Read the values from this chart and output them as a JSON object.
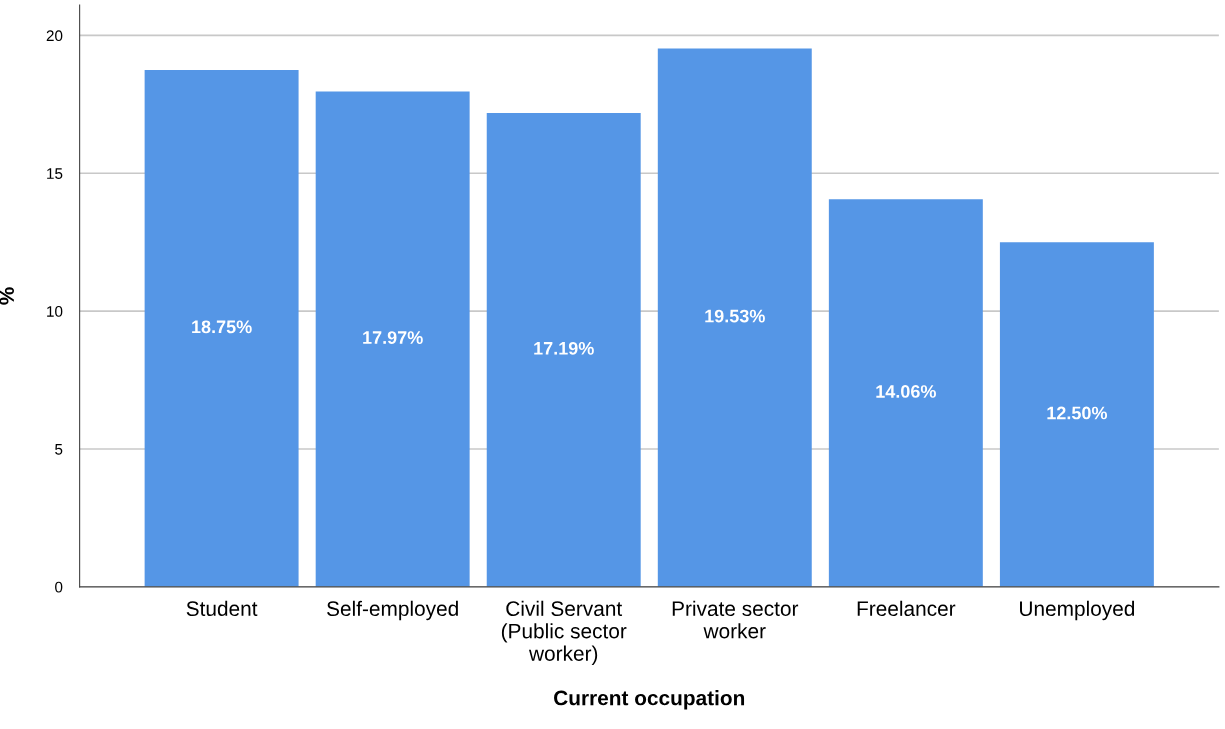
{
  "chart_data": {
    "type": "bar",
    "xlabel": "Current occupation",
    "ylabel": "%",
    "categories": [
      "Student",
      "Self-employed",
      "Civil Servant\n(Public sector\nworker)",
      "Private sector\nworker",
      "Freelancer",
      "Unemployed"
    ],
    "values": [
      18.75,
      17.97,
      17.19,
      19.53,
      14.06,
      12.5
    ],
    "value_labels": [
      "18.75%",
      "17.97%",
      "17.19%",
      "19.53%",
      "14.06%",
      "12.50%"
    ],
    "color": "#5596e6",
    "ylim": [
      0,
      21.1
    ],
    "yticks": [
      0,
      5,
      10,
      15,
      20
    ],
    "grid": "y",
    "legend": false
  }
}
